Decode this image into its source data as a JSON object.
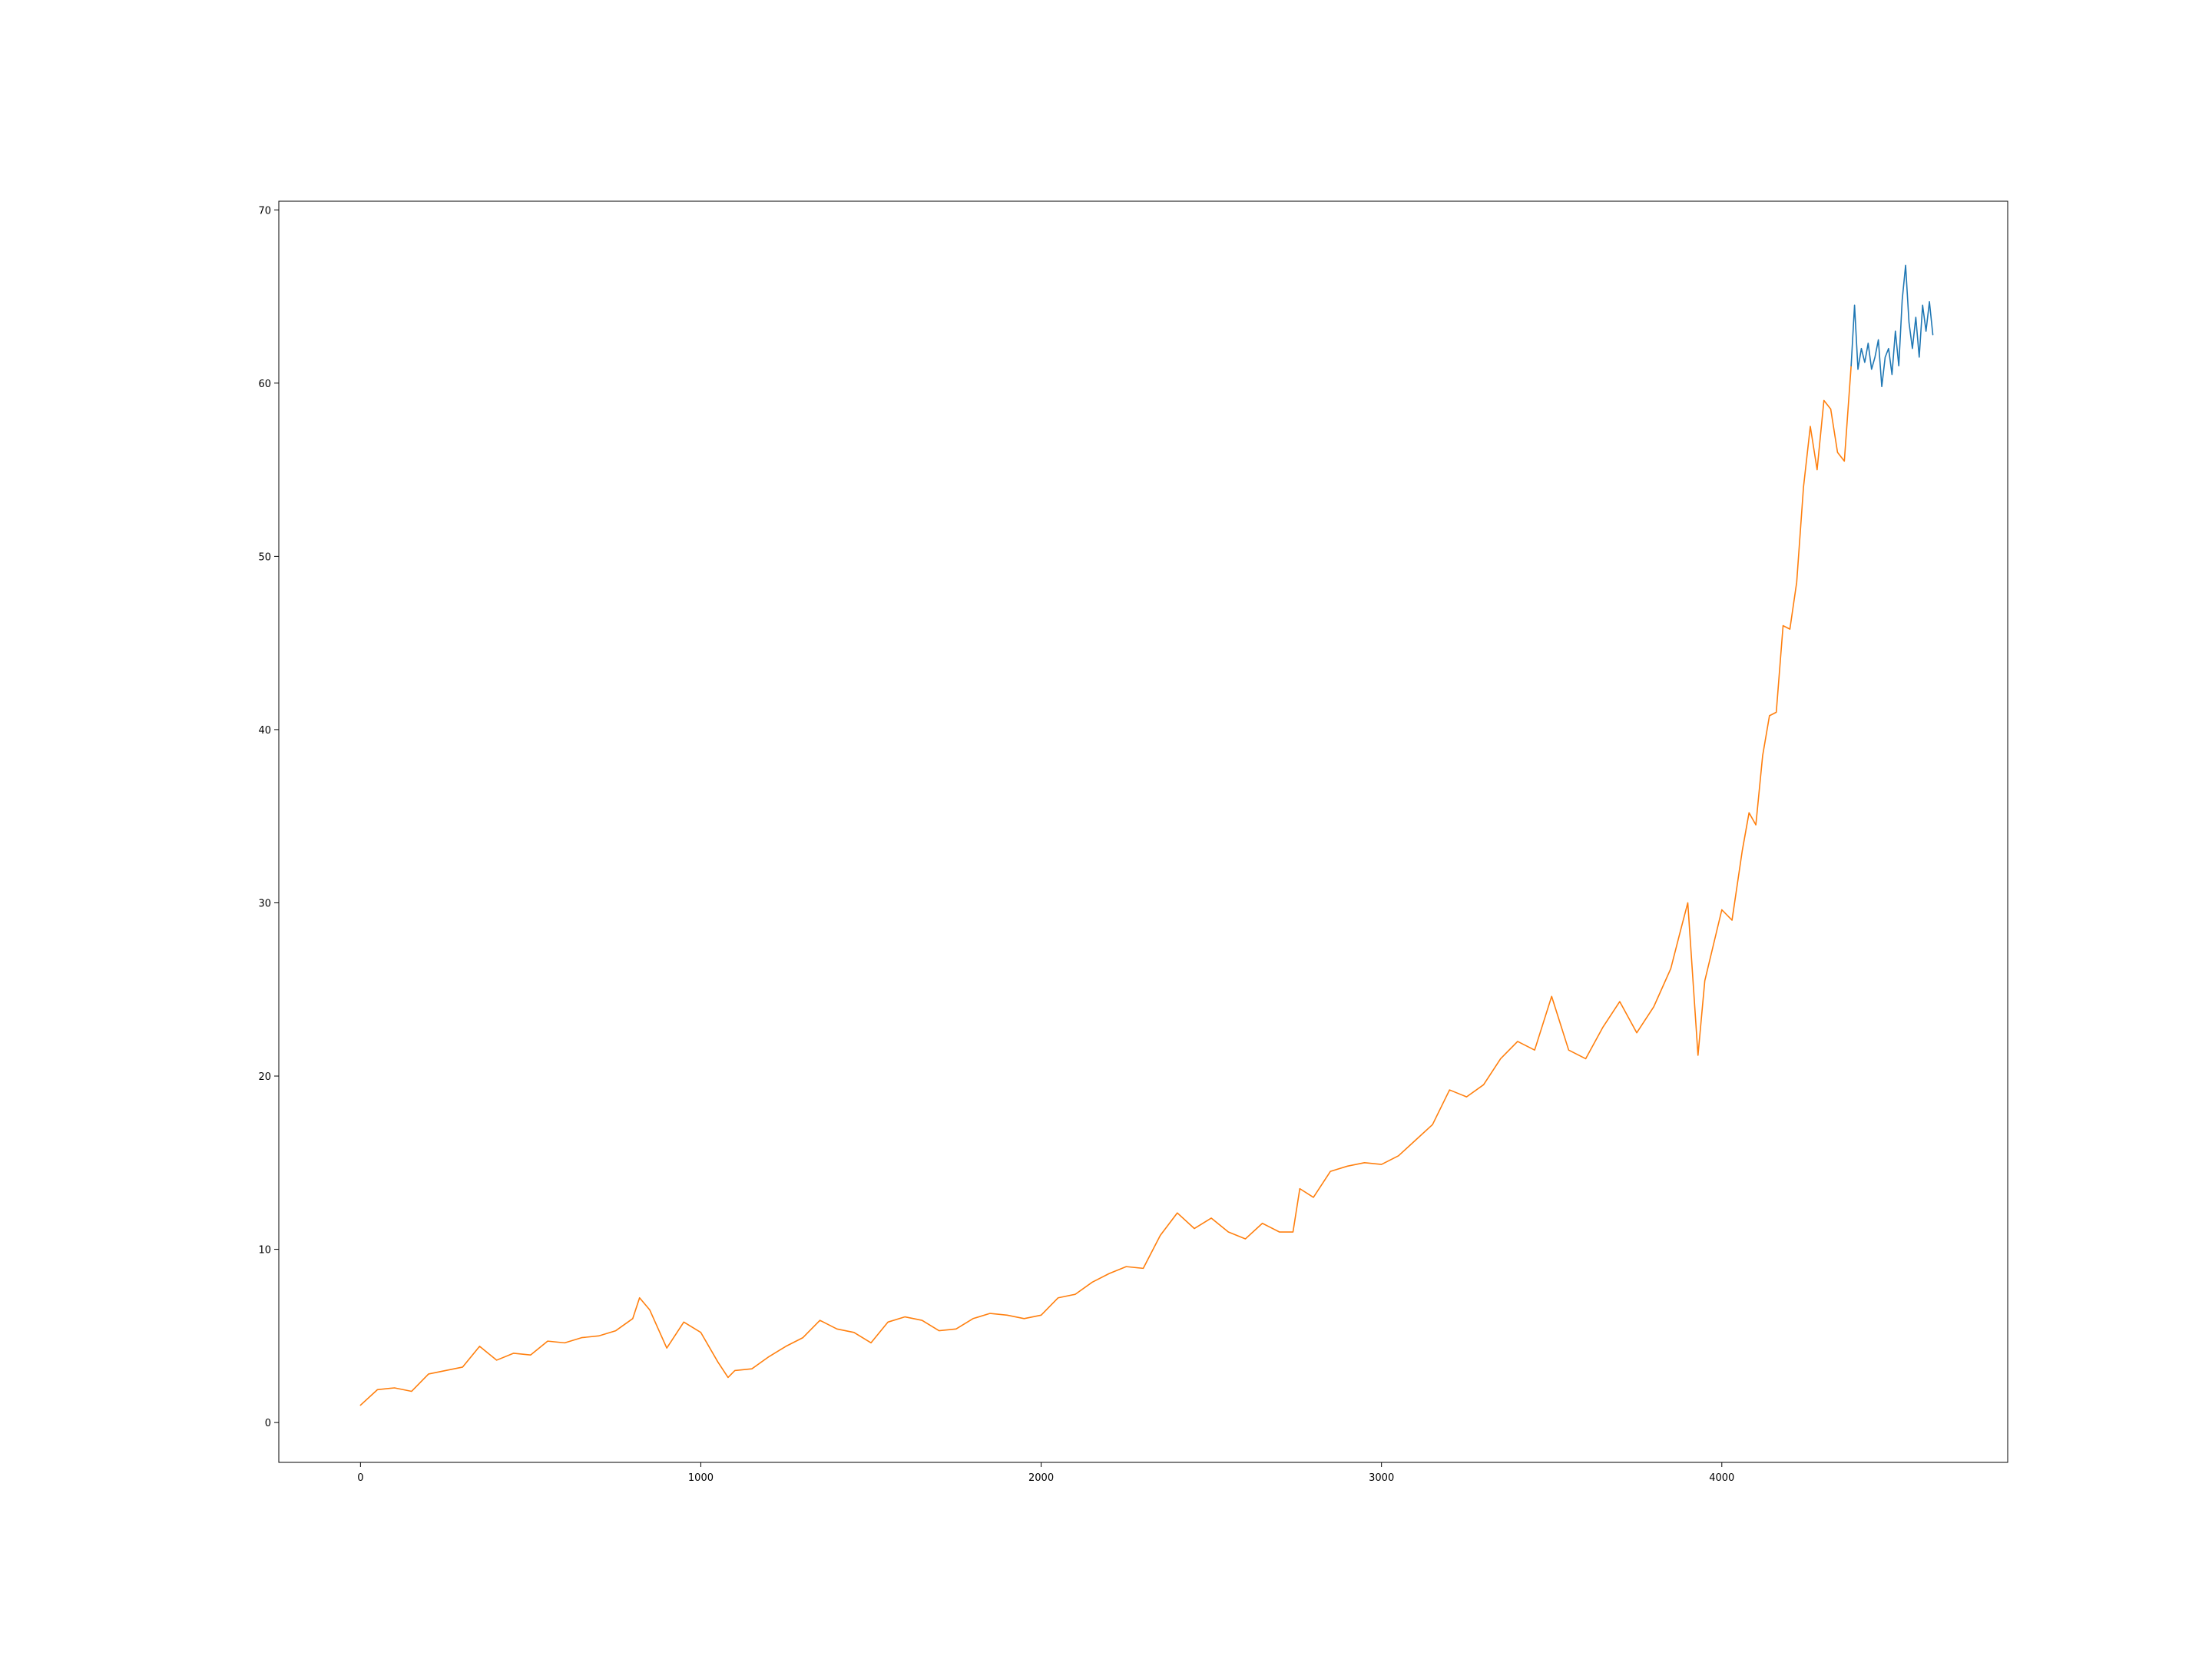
{
  "chart_data": {
    "type": "line",
    "title": "",
    "xlabel": "",
    "ylabel": "",
    "xlim": [
      -240,
      4840
    ],
    "ylim": [
      -2.3,
      70.5
    ],
    "x_ticks": [
      0,
      1000,
      2000,
      3000,
      4000
    ],
    "x_tick_labels": [
      "0",
      "1000",
      "2000",
      "3000",
      "4000"
    ],
    "y_ticks": [
      0,
      10,
      20,
      30,
      40,
      50,
      60,
      70
    ],
    "y_tick_labels": [
      "0",
      "10",
      "20",
      "30",
      "40",
      "50",
      "60",
      "70"
    ],
    "grid": false,
    "legend": "none",
    "series": [
      {
        "color": "#ff7f0e",
        "x": [
          0,
          50,
          100,
          150,
          200,
          250,
          300,
          350,
          400,
          450,
          500,
          550,
          600,
          650,
          700,
          750,
          800,
          820,
          850,
          900,
          950,
          1000,
          1050,
          1080,
          1100,
          1150,
          1200,
          1250,
          1300,
          1350,
          1400,
          1450,
          1500,
          1550,
          1600,
          1650,
          1700,
          1750,
          1800,
          1850,
          1900,
          1950,
          2000,
          2050,
          2100,
          2150,
          2200,
          2250,
          2300,
          2350,
          2400,
          2450,
          2500,
          2550,
          2600,
          2650,
          2700,
          2740,
          2760,
          2800,
          2850,
          2900,
          2950,
          3000,
          3050,
          3100,
          3150,
          3200,
          3250,
          3300,
          3350,
          3400,
          3450,
          3500,
          3550,
          3600,
          3650,
          3700,
          3750,
          3800,
          3850,
          3880,
          3900,
          3930,
          3950,
          4000,
          4030,
          4060,
          4080,
          4100,
          4120,
          4140,
          4160,
          4180,
          4200,
          4220,
          4240,
          4260,
          4280,
          4300,
          4320,
          4340,
          4360,
          4380
        ],
        "y": [
          1.0,
          1.9,
          2.0,
          1.8,
          2.8,
          3.0,
          3.2,
          4.4,
          3.6,
          4.0,
          3.9,
          4.7,
          4.6,
          4.9,
          5.0,
          5.3,
          6.0,
          7.2,
          6.5,
          4.3,
          5.8,
          5.2,
          3.5,
          2.6,
          3.0,
          3.1,
          3.8,
          4.4,
          4.9,
          5.9,
          5.4,
          5.2,
          4.6,
          5.8,
          6.1,
          5.9,
          5.3,
          5.4,
          6.0,
          6.3,
          6.2,
          6.0,
          6.2,
          7.2,
          7.4,
          8.1,
          8.6,
          9.0,
          8.9,
          10.8,
          12.1,
          11.2,
          11.8,
          11.0,
          10.6,
          11.5,
          11.0,
          11.0,
          13.5,
          13.0,
          14.5,
          14.8,
          15.0,
          14.9,
          15.4,
          16.3,
          17.2,
          19.2,
          18.8,
          19.5,
          21.0,
          22.0,
          21.5,
          24.6,
          21.5,
          21.0,
          22.8,
          24.3,
          22.5,
          24.0,
          26.2,
          28.5,
          30.0,
          21.2,
          25.5,
          29.6,
          29.0,
          33.0,
          35.2,
          34.5,
          38.5,
          40.8,
          41.0,
          46.0,
          45.8,
          48.5,
          54.0,
          57.5,
          55.0,
          59.0,
          58.5,
          56.0,
          55.5,
          61.0
        ]
      },
      {
        "color": "#1f77b4",
        "x": [
          4380,
          4390,
          4400,
          4410,
          4420,
          4430,
          4440,
          4450,
          4460,
          4470,
          4480,
          4490,
          4500,
          4510,
          4520,
          4530,
          4540,
          4550,
          4560,
          4570,
          4580,
          4590,
          4600,
          4610,
          4620
        ],
        "y": [
          61.0,
          64.5,
          60.8,
          62.0,
          61.2,
          62.3,
          60.8,
          61.5,
          62.5,
          59.8,
          61.5,
          62.0,
          60.5,
          63.0,
          61.0,
          64.8,
          66.8,
          63.5,
          62.0,
          63.8,
          61.5,
          64.5,
          63.0,
          64.7,
          62.8
        ]
      }
    ]
  }
}
